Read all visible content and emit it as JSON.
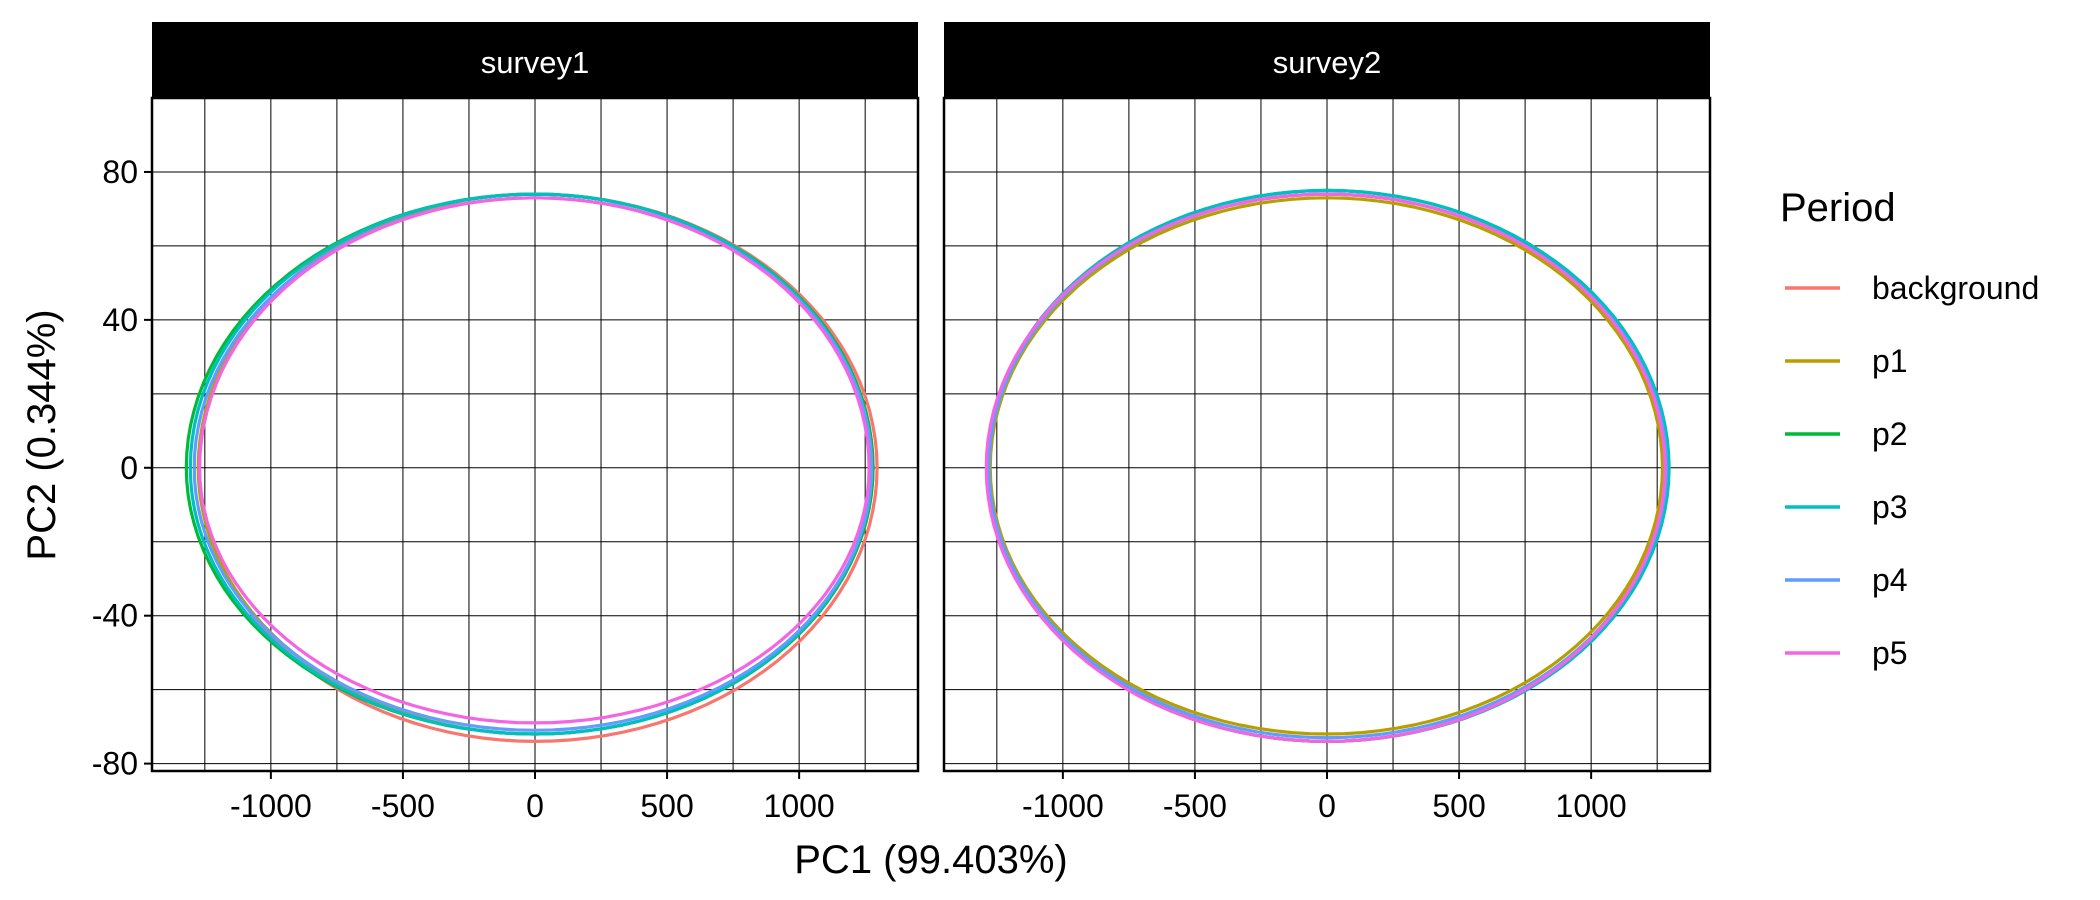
{
  "chart_data": {
    "type": "scatter",
    "style": "closed paths (ellipses) faceted by survey",
    "xlabel": "PC1 (99.403%)",
    "ylabel": "PC2 (0.344%)",
    "xlim": [
      -1450,
      1450
    ],
    "ylim": [
      -82,
      100
    ],
    "x_ticks": [
      -1000,
      -500,
      0,
      500,
      1000
    ],
    "x_tick_labels": [
      "-1000",
      "-500",
      "0",
      "500",
      "1000"
    ],
    "y_ticks": [
      -80,
      -40,
      0,
      40,
      80
    ],
    "y_tick_labels": [
      "-80",
      "-40",
      "0",
      "40",
      "80"
    ],
    "grid": true,
    "legend": {
      "title": "Period",
      "position": "right",
      "items": [
        {
          "label": "background",
          "color": "#F8766D"
        },
        {
          "label": "p1",
          "color": "#B79F00"
        },
        {
          "label": "p2",
          "color": "#00BA38"
        },
        {
          "label": "p3",
          "color": "#00BFC4"
        },
        {
          "label": "p4",
          "color": "#619CFF"
        },
        {
          "label": "p5",
          "color": "#F564E3"
        }
      ]
    },
    "panels": [
      {
        "strip": "survey1",
        "series": [
          {
            "name": "background",
            "color": "#F8766D",
            "cx": 0,
            "cy": 0,
            "rx_left": 1270,
            "rx_right": 1295,
            "ry_top": 74,
            "ry_bottom": 74
          },
          {
            "name": "p1",
            "color": "#B79F00",
            "cx": 0,
            "cy": 0,
            "rx_left": 1275,
            "rx_right": 1280,
            "ry_top": 74,
            "ry_bottom": 72
          },
          {
            "name": "p2",
            "color": "#00BA38",
            "cx": 0,
            "cy": 0,
            "rx_left": 1320,
            "rx_right": 1280,
            "ry_top": 74,
            "ry_bottom": 72
          },
          {
            "name": "p3",
            "color": "#00BFC4",
            "cx": 0,
            "cy": 0,
            "rx_left": 1305,
            "rx_right": 1275,
            "ry_top": 74,
            "ry_bottom": 72
          },
          {
            "name": "p4",
            "color": "#619CFF",
            "cx": 0,
            "cy": 0,
            "rx_left": 1290,
            "rx_right": 1275,
            "ry_top": 73,
            "ry_bottom": 71
          },
          {
            "name": "p5",
            "color": "#F564E3",
            "cx": 0,
            "cy": 0,
            "rx_left": 1270,
            "rx_right": 1265,
            "ry_top": 73,
            "ry_bottom": 69
          }
        ]
      },
      {
        "strip": "survey2",
        "series": [
          {
            "name": "background",
            "color": "#F8766D",
            "cx": 0,
            "cy": 0,
            "rx_left": 1280,
            "rx_right": 1275,
            "ry_top": 74,
            "ry_bottom": 74
          },
          {
            "name": "p1",
            "color": "#B79F00",
            "cx": 0,
            "cy": 0,
            "rx_left": 1275,
            "rx_right": 1270,
            "ry_top": 73,
            "ry_bottom": 72
          },
          {
            "name": "p2",
            "color": "#00BA38",
            "cx": 0,
            "cy": 0,
            "rx_left": 1285,
            "rx_right": 1290,
            "ry_top": 75,
            "ry_bottom": 74
          },
          {
            "name": "p3",
            "color": "#00BFC4",
            "cx": 0,
            "cy": 0,
            "rx_left": 1285,
            "rx_right": 1295,
            "ry_top": 75,
            "ry_bottom": 74
          },
          {
            "name": "p4",
            "color": "#619CFF",
            "cx": 0,
            "cy": 0,
            "rx_left": 1280,
            "rx_right": 1285,
            "ry_top": 74,
            "ry_bottom": 73
          },
          {
            "name": "p5",
            "color": "#F564E3",
            "cx": 0,
            "cy": 0,
            "rx_left": 1290,
            "rx_right": 1280,
            "ry_top": 74,
            "ry_bottom": 74
          }
        ]
      }
    ]
  }
}
